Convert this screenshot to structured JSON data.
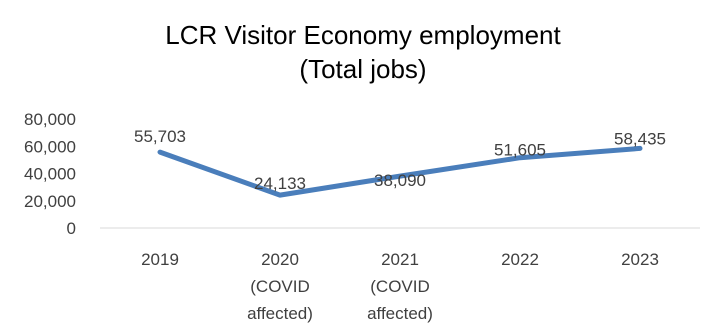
{
  "chart_data": {
    "type": "line",
    "title_lines": [
      "LCR  Visitor Economy employment",
      "(Total jobs)"
    ],
    "categories": [
      [
        "2019"
      ],
      [
        "2020",
        "(COVID",
        "affected)"
      ],
      [
        "2021",
        "(COVID",
        "affected)"
      ],
      [
        "2022"
      ],
      [
        "2023"
      ]
    ],
    "series": [
      {
        "values": [
          55703,
          24133,
          38090,
          51605,
          58435
        ]
      }
    ],
    "data_labels": [
      "55,703",
      "24,133",
      "38,090",
      "51,605",
      "58,435"
    ],
    "y_ticks": [
      "0",
      "20,000",
      "40,000",
      "60,000",
      "80,000"
    ],
    "ylim": [
      0,
      80000
    ],
    "grid": false,
    "legend": "none",
    "line_color": "#4a7ebb"
  }
}
